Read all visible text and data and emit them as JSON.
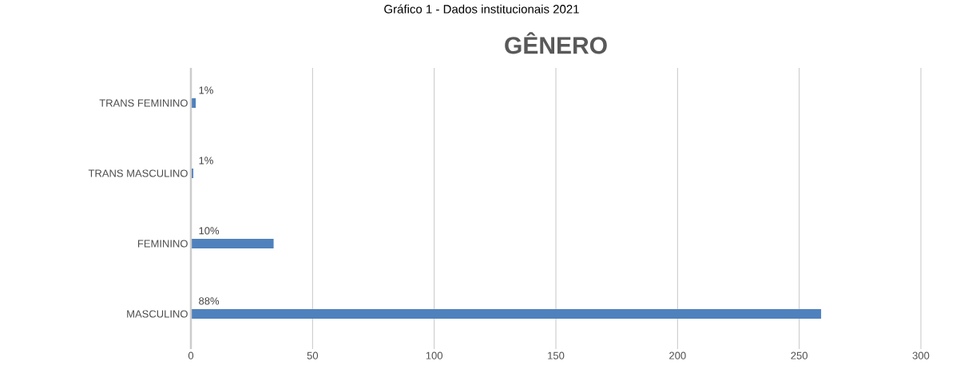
{
  "chart_data": {
    "type": "bar",
    "orientation": "horizontal",
    "title": "GÊNERO",
    "annotations": [
      "Gráfico 1 - Dados institucionais 2021",
      "1%",
      "1%",
      "10%",
      "88%"
    ],
    "categories": [
      "TRANS FEMININO",
      "TRANS MASCULINO",
      "FEMININO",
      "MASCULINO"
    ],
    "values": [
      2,
      1,
      34,
      259
    ],
    "color": "#4f81bd",
    "xlim": [
      0,
      300
    ],
    "xticks": [
      0,
      50,
      100,
      150,
      200,
      250,
      300
    ],
    "grid": "x"
  }
}
